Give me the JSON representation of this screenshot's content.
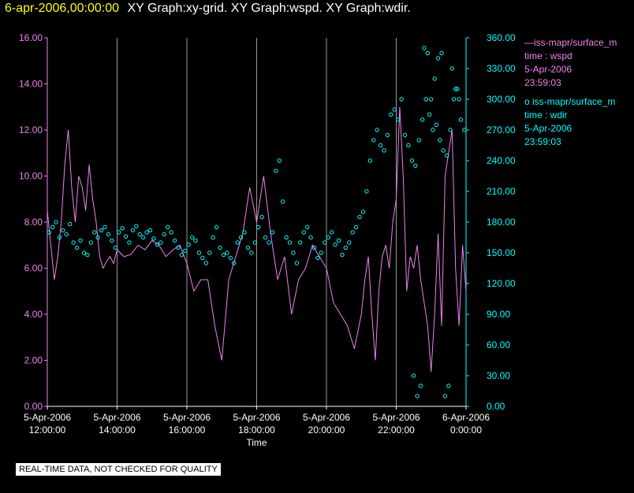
{
  "header": {
    "date": "6-apr-2006,00:00:00",
    "graphs": "XY Graph:xy-grid.  XY Graph:wspd.  XY Graph:wdir."
  },
  "legend": {
    "series1": {
      "label": "iss-mapr/surface_m",
      "line2": "time : wspd",
      "line3": "5-Apr-2006",
      "line4": "23:59:03"
    },
    "series2": {
      "label": "iss-mapr/surface_m",
      "line2": "time : wdir",
      "line3": "5-Apr-2006",
      "line4": "23:59:03"
    }
  },
  "footer": "REAL-TIME DATA, NOT CHECKED FOR QUALITY",
  "chart_data": {
    "type": "line",
    "xlabel": "Time",
    "x_ticks": [
      {
        "date": "5-Apr-2006",
        "time": "12:00:00",
        "hour": 12
      },
      {
        "date": "5-Apr-2006",
        "time": "14:00:00",
        "hour": 14
      },
      {
        "date": "5-Apr-2006",
        "time": "16:00:00",
        "hour": 16
      },
      {
        "date": "5-Apr-2006",
        "time": "18:00:00",
        "hour": 18
      },
      {
        "date": "5-Apr-2006",
        "time": "20:00:00",
        "hour": 20
      },
      {
        "date": "5-Apr-2006",
        "time": "22:00:00",
        "hour": 22
      },
      {
        "date": "6-Apr-2006",
        "time": "0:00:00",
        "hour": 24
      }
    ],
    "xlim_hours": [
      12,
      24
    ],
    "y_left": {
      "ylim": [
        0,
        16
      ],
      "ticks": [
        "0.00",
        "2.00",
        "4.00",
        "6.00",
        "8.00",
        "10.00",
        "12.00",
        "14.00",
        "16.00"
      ]
    },
    "y_right": {
      "ylim": [
        0,
        360
      ],
      "ticks": [
        "0.00",
        "30.00",
        "60.00",
        "90.00",
        "120.00",
        "150.00",
        "180.00",
        "210.00",
        "240.00",
        "270.00",
        "300.00",
        "330.00",
        "360.00"
      ]
    },
    "grid": "vertical",
    "colors": {
      "wspd": "#ee82ee",
      "wdir": "#00ffff",
      "left_axis": "#ee82ee",
      "right_axis": "#00ffff",
      "grid": "#999999"
    },
    "series": [
      {
        "name": "wspd",
        "axis": "left",
        "x_hours": [
          12.0,
          12.1,
          12.2,
          12.3,
          12.4,
          12.5,
          12.6,
          12.7,
          12.8,
          12.9,
          13.0,
          13.1,
          13.2,
          13.3,
          13.4,
          13.5,
          13.6,
          13.7,
          13.8,
          13.9,
          14.0,
          14.2,
          14.4,
          14.6,
          14.8,
          15.0,
          15.2,
          15.4,
          15.6,
          15.8,
          16.0,
          16.2,
          16.4,
          16.6,
          16.8,
          17.0,
          17.2,
          17.4,
          17.6,
          17.8,
          18.0,
          18.2,
          18.4,
          18.6,
          18.8,
          19.0,
          19.2,
          19.4,
          19.6,
          19.8,
          20.0,
          20.2,
          20.4,
          20.6,
          20.8,
          21.0,
          21.1,
          21.2,
          21.3,
          21.4,
          21.5,
          21.6,
          21.7,
          21.8,
          21.9,
          22.0,
          22.1,
          22.2,
          22.3,
          22.4,
          22.5,
          22.6,
          22.7,
          22.8,
          22.9,
          23.0,
          23.1,
          23.2,
          23.3,
          23.4,
          23.5,
          23.6,
          23.7,
          23.8,
          23.9,
          24.0
        ],
        "values": [
          8.5,
          7.0,
          5.5,
          6.5,
          8.0,
          10.5,
          12.0,
          9.5,
          8.0,
          10.0,
          9.5,
          8.5,
          10.5,
          9.0,
          8.0,
          6.5,
          6.0,
          6.3,
          6.5,
          6.2,
          6.8,
          6.5,
          6.6,
          7.0,
          6.8,
          7.2,
          7.0,
          6.5,
          6.8,
          7.0,
          6.2,
          5.0,
          5.5,
          5.5,
          3.5,
          2.0,
          5.5,
          6.5,
          7.5,
          9.5,
          8.0,
          10.0,
          7.5,
          5.5,
          6.5,
          4.0,
          5.5,
          6.0,
          7.0,
          6.5,
          6.0,
          4.5,
          4.0,
          3.5,
          2.5,
          4.0,
          5.5,
          6.5,
          4.0,
          2.0,
          5.0,
          6.5,
          7.0,
          6.0,
          8.0,
          9.0,
          13.0,
          10.0,
          5.0,
          6.5,
          6.0,
          7.0,
          5.5,
          4.5,
          3.5,
          1.5,
          4.0,
          7.5,
          3.5,
          10.0,
          11.0,
          12.0,
          6.0,
          3.5,
          7.0,
          5.0
        ]
      },
      {
        "name": "wdir",
        "axis": "right",
        "x_hours": [
          12.05,
          12.15,
          12.25,
          12.35,
          12.45,
          12.55,
          12.65,
          12.75,
          12.85,
          12.95,
          13.05,
          13.15,
          13.25,
          13.35,
          13.45,
          13.55,
          13.65,
          13.75,
          13.85,
          13.95,
          14.05,
          14.15,
          14.25,
          14.35,
          14.45,
          14.55,
          14.65,
          14.75,
          14.85,
          14.95,
          15.05,
          15.15,
          15.25,
          15.35,
          15.45,
          15.55,
          15.65,
          15.75,
          15.85,
          15.95,
          16.05,
          16.15,
          16.25,
          16.35,
          16.45,
          16.55,
          16.65,
          16.75,
          16.85,
          16.95,
          17.05,
          17.15,
          17.25,
          17.35,
          17.45,
          17.55,
          17.65,
          17.75,
          17.85,
          17.95,
          18.05,
          18.15,
          18.25,
          18.35,
          18.45,
          18.55,
          18.65,
          18.75,
          18.85,
          18.95,
          19.05,
          19.15,
          19.25,
          19.35,
          19.45,
          19.55,
          19.65,
          19.75,
          19.85,
          19.95,
          20.05,
          20.15,
          20.25,
          20.35,
          20.45,
          20.55,
          20.65,
          20.75,
          20.85,
          20.95,
          21.05,
          21.15,
          21.25,
          21.35,
          21.45,
          21.55,
          21.65,
          21.75,
          21.85,
          21.95,
          22.05,
          22.15,
          22.25,
          22.35,
          22.45,
          22.55,
          22.65,
          22.75,
          22.85,
          22.95,
          23.05,
          23.15,
          23.25,
          23.35,
          23.45,
          23.55,
          23.65,
          23.75,
          23.85,
          23.95,
          22.5,
          22.6,
          22.7,
          22.8,
          22.9,
          23.0,
          23.1,
          23.2,
          23.3,
          23.4,
          23.5,
          23.6,
          23.7,
          23.8
        ],
        "values": [
          170,
          175,
          180,
          165,
          172,
          168,
          178,
          160,
          155,
          162,
          150,
          148,
          160,
          170,
          165,
          172,
          175,
          168,
          162,
          155,
          170,
          174,
          166,
          160,
          172,
          176,
          168,
          165,
          170,
          172,
          164,
          158,
          160,
          168,
          175,
          170,
          162,
          155,
          148,
          152,
          158,
          165,
          162,
          150,
          145,
          140,
          150,
          165,
          175,
          155,
          148,
          150,
          145,
          140,
          160,
          165,
          170,
          155,
          150,
          160,
          175,
          185,
          165,
          160,
          170,
          230,
          240,
          200,
          165,
          160,
          150,
          140,
          160,
          170,
          175,
          165,
          155,
          145,
          150,
          160,
          165,
          170,
          158,
          162,
          148,
          155,
          160,
          170,
          175,
          185,
          190,
          210,
          240,
          260,
          270,
          255,
          250,
          265,
          285,
          290,
          280,
          300,
          265,
          255,
          240,
          235,
          260,
          280,
          300,
          285,
          270,
          275,
          260,
          250,
          245,
          270,
          300,
          310,
          280,
          270,
          30,
          10,
          20,
          350,
          345,
          300,
          320,
          340,
          345,
          10,
          20,
          330,
          310,
          300
        ]
      }
    ]
  }
}
